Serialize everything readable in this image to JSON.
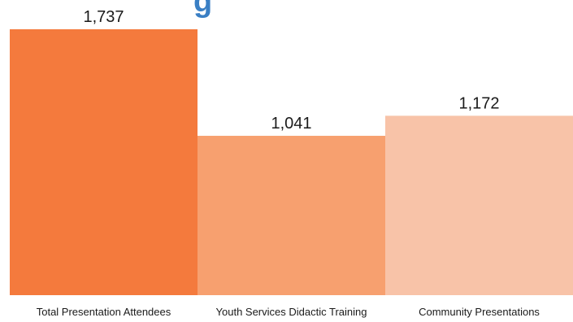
{
  "chart_data": {
    "type": "bar",
    "title_fragment": "g",
    "categories": [
      "Total Presentation Attendees",
      "Youth Services Didactic Training",
      "Community Presentations"
    ],
    "values": [
      1737,
      1041,
      1172
    ],
    "value_labels": [
      "1,737",
      "1,041",
      "1,172"
    ],
    "colors": [
      "#f47a3d",
      "#f7a06f",
      "#f8c3a8"
    ],
    "title_color": "#3a7fc4",
    "ylim": [
      0,
      1737
    ],
    "grid": false,
    "legend": "none",
    "xlabel": "",
    "ylabel": ""
  }
}
